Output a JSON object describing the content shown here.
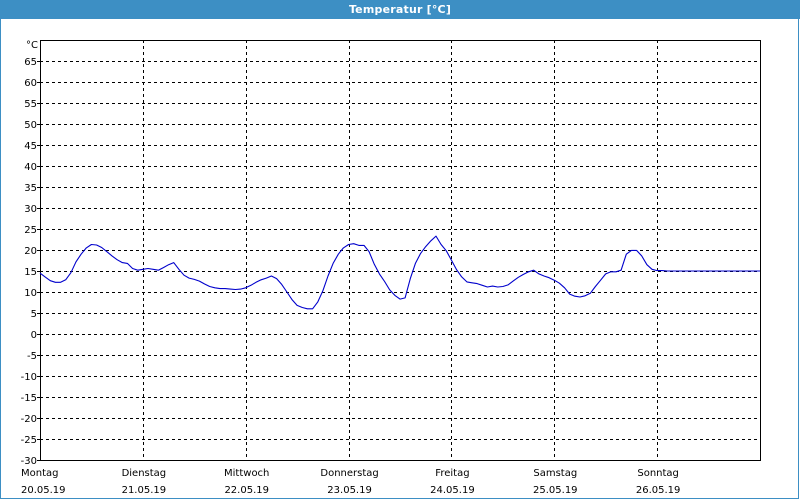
{
  "window": {
    "title": "Temperatur [°C]"
  },
  "chart_data": {
    "type": "line",
    "title": "Temperatur [°C]",
    "ylabel": "°C",
    "xlabel": "",
    "ylim": [
      -30,
      70
    ],
    "yticks": [
      65,
      60,
      55,
      50,
      45,
      40,
      35,
      30,
      25,
      20,
      15,
      10,
      5,
      0,
      -5,
      -10,
      -15,
      -20,
      -25,
      -30
    ],
    "xlim": [
      0,
      7
    ],
    "grid": true,
    "days": [
      {
        "day": "Montag",
        "date": "20.05.19"
      },
      {
        "day": "Dienstag",
        "date": "21.05.19"
      },
      {
        "day": "Mittwoch",
        "date": "22.05.19"
      },
      {
        "day": "Donnerstag",
        "date": "23.05.19"
      },
      {
        "day": "Freitag",
        "date": "24.05.19"
      },
      {
        "day": "Samstag",
        "date": "25.05.19"
      },
      {
        "day": "Sonntag",
        "date": "26.05.19"
      }
    ],
    "series": [
      {
        "color": "#0000cc",
        "x": [
          0,
          0.05,
          0.1,
          0.15,
          0.2,
          0.25,
          0.3,
          0.35,
          0.4,
          0.45,
          0.5,
          0.55,
          0.6,
          0.65,
          0.7,
          0.75,
          0.8,
          0.85,
          0.9,
          0.95,
          1.0,
          1.05,
          1.1,
          1.15,
          1.2,
          1.25,
          1.3,
          1.35,
          1.4,
          1.45,
          1.5,
          1.55,
          1.6,
          1.65,
          1.7,
          1.75,
          1.8,
          1.85,
          1.9,
          1.95,
          2.0,
          2.05,
          2.1,
          2.15,
          2.2,
          2.25,
          2.3,
          2.35,
          2.4,
          2.45,
          2.5,
          2.55,
          2.6,
          2.65,
          2.7,
          2.75,
          2.8,
          2.85,
          2.9,
          2.95,
          3.0,
          3.05,
          3.1,
          3.15,
          3.2,
          3.25,
          3.3,
          3.35,
          3.4,
          3.45,
          3.5,
          3.55,
          3.6,
          3.65,
          3.7,
          3.75,
          3.8,
          3.85,
          3.9,
          3.95,
          4.0,
          4.05,
          4.1,
          4.15,
          4.2,
          4.25,
          4.3,
          4.35,
          4.4,
          4.45,
          4.5,
          4.55,
          4.6,
          4.65,
          4.7,
          4.75,
          4.8,
          4.85,
          4.9,
          4.95,
          5.0,
          5.05,
          5.1,
          5.15,
          5.2,
          5.25,
          5.3,
          5.35,
          5.4,
          5.45,
          5.5,
          5.55,
          5.6,
          5.65,
          5.7,
          5.75,
          5.8,
          5.85,
          5.9,
          5.95,
          6.0,
          6.05,
          6.1,
          6.15,
          6.2,
          6.25,
          6.3,
          6.35,
          6.4,
          6.45,
          6.5,
          6.55,
          6.6,
          6.65,
          6.7,
          6.75,
          6.8,
          6.85,
          6.9,
          6.95,
          7.0
        ],
        "y": [
          14.5,
          13.6,
          12.7,
          12.3,
          12.3,
          12.9,
          14.6,
          17.2,
          19.0,
          20.5,
          21.3,
          21.2,
          20.6,
          19.6,
          18.6,
          17.7,
          17.0,
          16.8,
          15.6,
          15.2,
          15.4,
          15.6,
          15.4,
          15.2,
          15.8,
          16.5,
          17.0,
          15.4,
          14.0,
          13.3,
          13.0,
          12.6,
          11.9,
          11.3,
          11.0,
          10.8,
          10.8,
          10.7,
          10.6,
          10.7,
          11.0,
          11.6,
          12.3,
          12.9,
          13.3,
          13.8,
          13.2,
          11.8,
          10.0,
          8.2,
          6.8,
          6.3,
          6.0,
          6.0,
          7.6,
          10.3,
          13.8,
          16.8,
          19.0,
          20.5,
          21.3,
          21.5,
          21.1,
          21.1,
          19.6,
          16.6,
          14.3,
          12.5,
          10.5,
          9.2,
          8.3,
          8.6,
          13.2,
          16.8,
          19.2,
          20.8,
          22.2,
          23.3,
          21.3,
          19.8,
          17.6,
          15.3,
          13.6,
          12.4,
          12.2,
          12.0,
          11.6,
          11.2,
          11.4,
          11.2,
          11.3,
          11.7,
          12.6,
          13.5,
          14.2,
          14.8,
          15.2,
          14.3,
          13.8,
          13.4,
          12.8,
          12.1,
          11.0,
          9.5,
          9.0,
          8.8,
          9.1,
          9.7,
          11.3,
          12.8,
          14.3,
          14.8,
          14.8,
          15.2,
          19.0,
          19.9,
          19.9,
          18.6,
          16.5,
          15.4,
          15.1,
          15.1,
          15.0,
          15.0,
          15.0,
          15.0,
          15.0,
          15.0,
          15.0,
          15.0,
          15.0,
          15.0,
          15.0,
          15.0,
          15.0,
          15.0,
          15.0,
          15.0,
          15.0,
          15.0,
          15.0
        ]
      }
    ]
  }
}
